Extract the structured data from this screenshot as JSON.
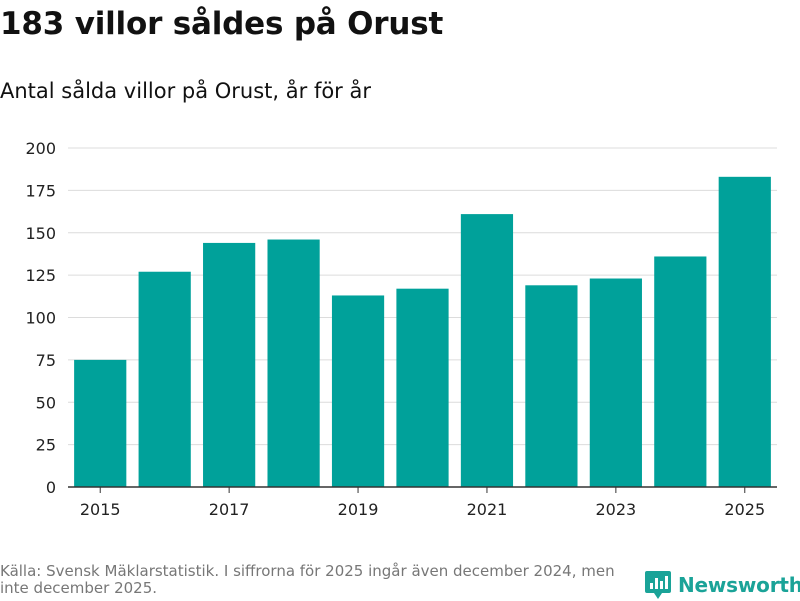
{
  "title": "183 villor såldes på Orust",
  "subtitle": "Antal sålda villor på Orust, år för år",
  "footer": "Källa: Svensk Mäklarstatistik. I siffrorna för 2025 ingår även december 2024, men inte december 2025.",
  "brand": {
    "name": "Newsworthy",
    "icon": "newsworthy-logo-icon"
  },
  "colors": {
    "bar": "#00a19a",
    "grid": "#dcdcdc",
    "axis": "#333333",
    "brand": "#1aa398"
  },
  "chart_data": {
    "type": "bar",
    "title": "Antal sålda villor på Orust, år för år",
    "xlabel": "",
    "ylabel": "",
    "x": [
      2015,
      2016,
      2017,
      2018,
      2019,
      2020,
      2021,
      2022,
      2023,
      2024,
      2025
    ],
    "values": [
      75,
      127,
      144,
      146,
      113,
      117,
      161,
      119,
      123,
      136,
      183
    ],
    "ylim": [
      0,
      200
    ],
    "yticks": [
      0,
      25,
      50,
      75,
      100,
      125,
      150,
      175,
      200
    ],
    "xticks": [
      2015,
      2017,
      2019,
      2021,
      2023,
      2025
    ],
    "grid": true,
    "legend": "none"
  }
}
